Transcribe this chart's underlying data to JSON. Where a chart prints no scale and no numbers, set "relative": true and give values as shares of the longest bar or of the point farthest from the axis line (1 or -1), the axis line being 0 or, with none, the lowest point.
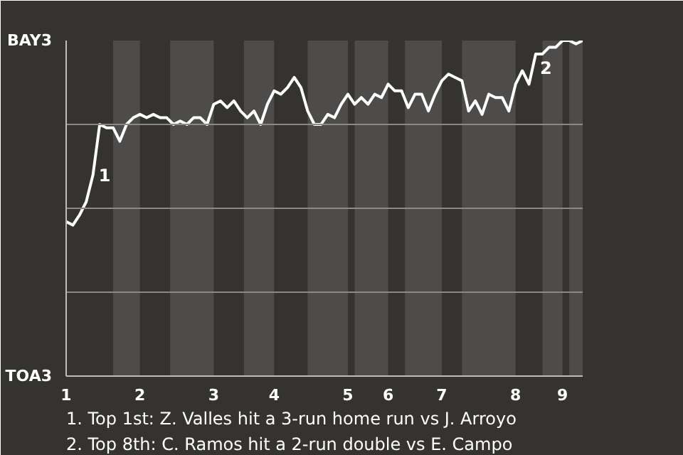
{
  "chart_data": {
    "type": "line",
    "relative": true,
    "categories": [
      "1",
      null,
      null,
      null,
      null,
      null,
      null,
      null,
      null,
      null,
      null,
      "2",
      null,
      null,
      null,
      null,
      null,
      null,
      null,
      null,
      null,
      null,
      "3",
      null,
      null,
      null,
      null,
      null,
      null,
      null,
      null,
      "4",
      null,
      null,
      null,
      null,
      null,
      null,
      null,
      null,
      null,
      null,
      "5",
      null,
      null,
      null,
      null,
      null,
      "6",
      null,
      null,
      null,
      null,
      null,
      null,
      null,
      "7",
      null,
      null,
      null,
      null,
      null,
      null,
      null,
      null,
      null,
      null,
      "8",
      null,
      null,
      null,
      null,
      null,
      null,
      "9",
      null,
      null,
      null
    ],
    "series": [
      {
        "color": "#ffffff",
        "values": [
          0.46,
          0.45,
          0.48,
          0.52,
          0.6,
          0.75,
          0.74,
          0.74,
          0.7,
          0.75,
          0.77,
          0.78,
          0.77,
          0.78,
          0.77,
          0.77,
          0.75,
          0.76,
          0.75,
          0.77,
          0.77,
          0.75,
          0.81,
          0.82,
          0.8,
          0.82,
          0.79,
          0.77,
          0.79,
          0.75,
          0.81,
          0.85,
          0.84,
          0.86,
          0.89,
          0.86,
          0.79,
          0.75,
          0.75,
          0.78,
          0.77,
          0.81,
          0.84,
          0.81,
          0.83,
          0.81,
          0.84,
          0.83,
          0.87,
          0.85,
          0.85,
          0.8,
          0.84,
          0.84,
          0.79,
          0.84,
          0.88,
          0.9,
          0.89,
          0.88,
          0.79,
          0.82,
          0.78,
          0.84,
          0.83,
          0.83,
          0.79,
          0.87,
          0.91,
          0.87,
          0.96,
          0.96,
          0.98,
          0.98,
          1,
          1,
          0.99,
          1
        ],
        "name": null
      }
    ],
    "grid": "y",
    "annotations": [
      "BAY3",
      "TOA3",
      "1",
      "2",
      "1. Top 1st: Z. Valles hit a 3-run home run vs J. Arroyo",
      "2. Top 8th: C. Ramos hit a 2-run double vs E. Campo"
    ]
  }
}
